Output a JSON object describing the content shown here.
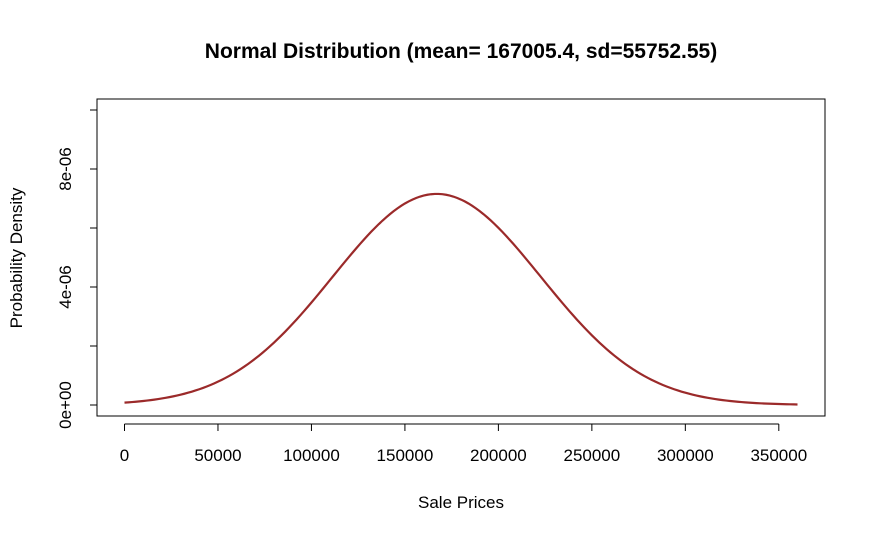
{
  "chart_data": {
    "type": "line",
    "title": "Normal Distribution (mean= 167005.4, sd=55752.55)",
    "xlabel": "Sale Prices",
    "ylabel": "Probability Density",
    "xlim": [
      0,
      360000
    ],
    "ylim": [
      0,
      1.01e-05
    ],
    "x_ticks": [
      {
        "value": 0,
        "label": "0"
      },
      {
        "value": 50000,
        "label": "50000"
      },
      {
        "value": 100000,
        "label": "100000"
      },
      {
        "value": 150000,
        "label": "150000"
      },
      {
        "value": 200000,
        "label": "200000"
      },
      {
        "value": 250000,
        "label": "250000"
      },
      {
        "value": 300000,
        "label": "300000"
      },
      {
        "value": 350000,
        "label": "350000"
      }
    ],
    "y_ticks": [
      {
        "value": 0,
        "label": "0e+00"
      },
      {
        "value": 2e-06,
        "label": ""
      },
      {
        "value": 4e-06,
        "label": "4e-06"
      },
      {
        "value": 6e-06,
        "label": ""
      },
      {
        "value": 8e-06,
        "label": "8e-06"
      },
      {
        "value": 1e-05,
        "label": ""
      }
    ],
    "grid": false,
    "line_color": "#9b2a2a",
    "series": [
      {
        "mean": 167005.4,
        "sd": 55752.55,
        "x": [
          0,
          20000,
          40000,
          60000,
          80000,
          100000,
          120000,
          140000,
          160000,
          167000,
          180000,
          200000,
          220000,
          240000,
          260000,
          280000,
          300000,
          320000,
          340000,
          360000
        ],
        "values": [
          8e-08,
          2.2e-07,
          5.3e-07,
          1.13e-06,
          2.11e-06,
          3.46e-06,
          5.02e-06,
          6.37e-06,
          7.12e-06,
          7.16e-06,
          6.96e-06,
          6.01e-06,
          4.57e-06,
          3.06e-06,
          1.8e-06,
          9.3e-07,
          4.3e-07,
          1.7e-07,
          6e-08,
          2e-08
        ]
      }
    ]
  }
}
